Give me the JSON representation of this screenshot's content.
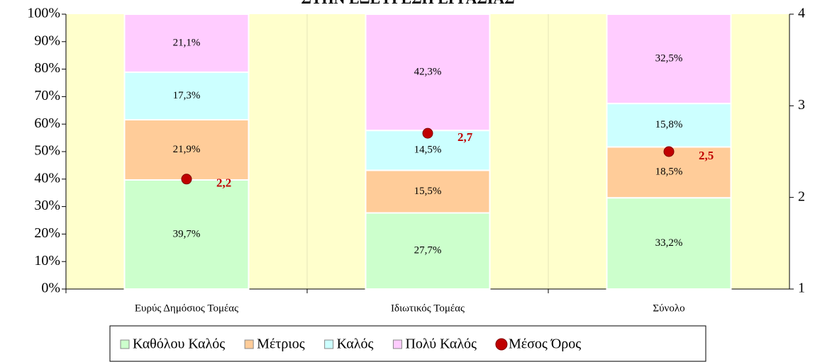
{
  "chart_data": {
    "type": "stacked_bar_percent",
    "title": "ΣΤΗΝ ΕΞΕΥΡΕΣΗ ΕΡΓΑΣΙΑΣ",
    "categories": [
      "Ευρύς Δημόσιος Τομέας",
      "Ιδιωτικός Τομέας",
      "Σύνολο"
    ],
    "series": [
      {
        "name": "Καθόλου Καλός",
        "color": "#ccffcc",
        "values": [
          39.7,
          27.7,
          33.2
        ],
        "value_labels": [
          "39,7%",
          "27,7%",
          "33,2%"
        ]
      },
      {
        "name": "Μέτριος",
        "color": "#ffcc99",
        "values": [
          21.9,
          15.5,
          18.5
        ],
        "value_labels": [
          "21,9%",
          "15,5%",
          "18,5%"
        ]
      },
      {
        "name": "Καλός",
        "color": "#ccffff",
        "values": [
          17.3,
          14.5,
          15.8
        ],
        "value_labels": [
          "17,3%",
          "14,5%",
          "15,8%"
        ]
      },
      {
        "name": "Πολύ Καλός",
        "color": "#ffccff",
        "values": [
          21.1,
          42.3,
          32.5
        ],
        "value_labels": [
          "21,1%",
          "42,3%",
          "32,5%"
        ]
      },
      {
        "name": "Μέσος Όρος",
        "color": "#c00000",
        "type": "scatter",
        "axis": "y2",
        "values": [
          2.2,
          2.7,
          2.5
        ],
        "value_labels": [
          "2,2",
          "2,7",
          "2,5"
        ]
      }
    ],
    "ylim": [
      0,
      100
    ],
    "yticks": [
      {
        "value": 0,
        "label": "0%"
      },
      {
        "value": 10,
        "label": "10%"
      },
      {
        "value": 20,
        "label": "20%"
      },
      {
        "value": 30,
        "label": "30%"
      },
      {
        "value": 40,
        "label": "40%"
      },
      {
        "value": 50,
        "label": "50%"
      },
      {
        "value": 60,
        "label": "60%"
      },
      {
        "value": 70,
        "label": "70%"
      },
      {
        "value": 80,
        "label": "80%"
      },
      {
        "value": 90,
        "label": "90%"
      },
      {
        "value": 100,
        "label": "100%"
      }
    ],
    "y2lim": [
      1,
      4
    ],
    "y2ticks": [
      1,
      2,
      3,
      4
    ],
    "background": "#ffffcc",
    "legend": "bottom"
  }
}
